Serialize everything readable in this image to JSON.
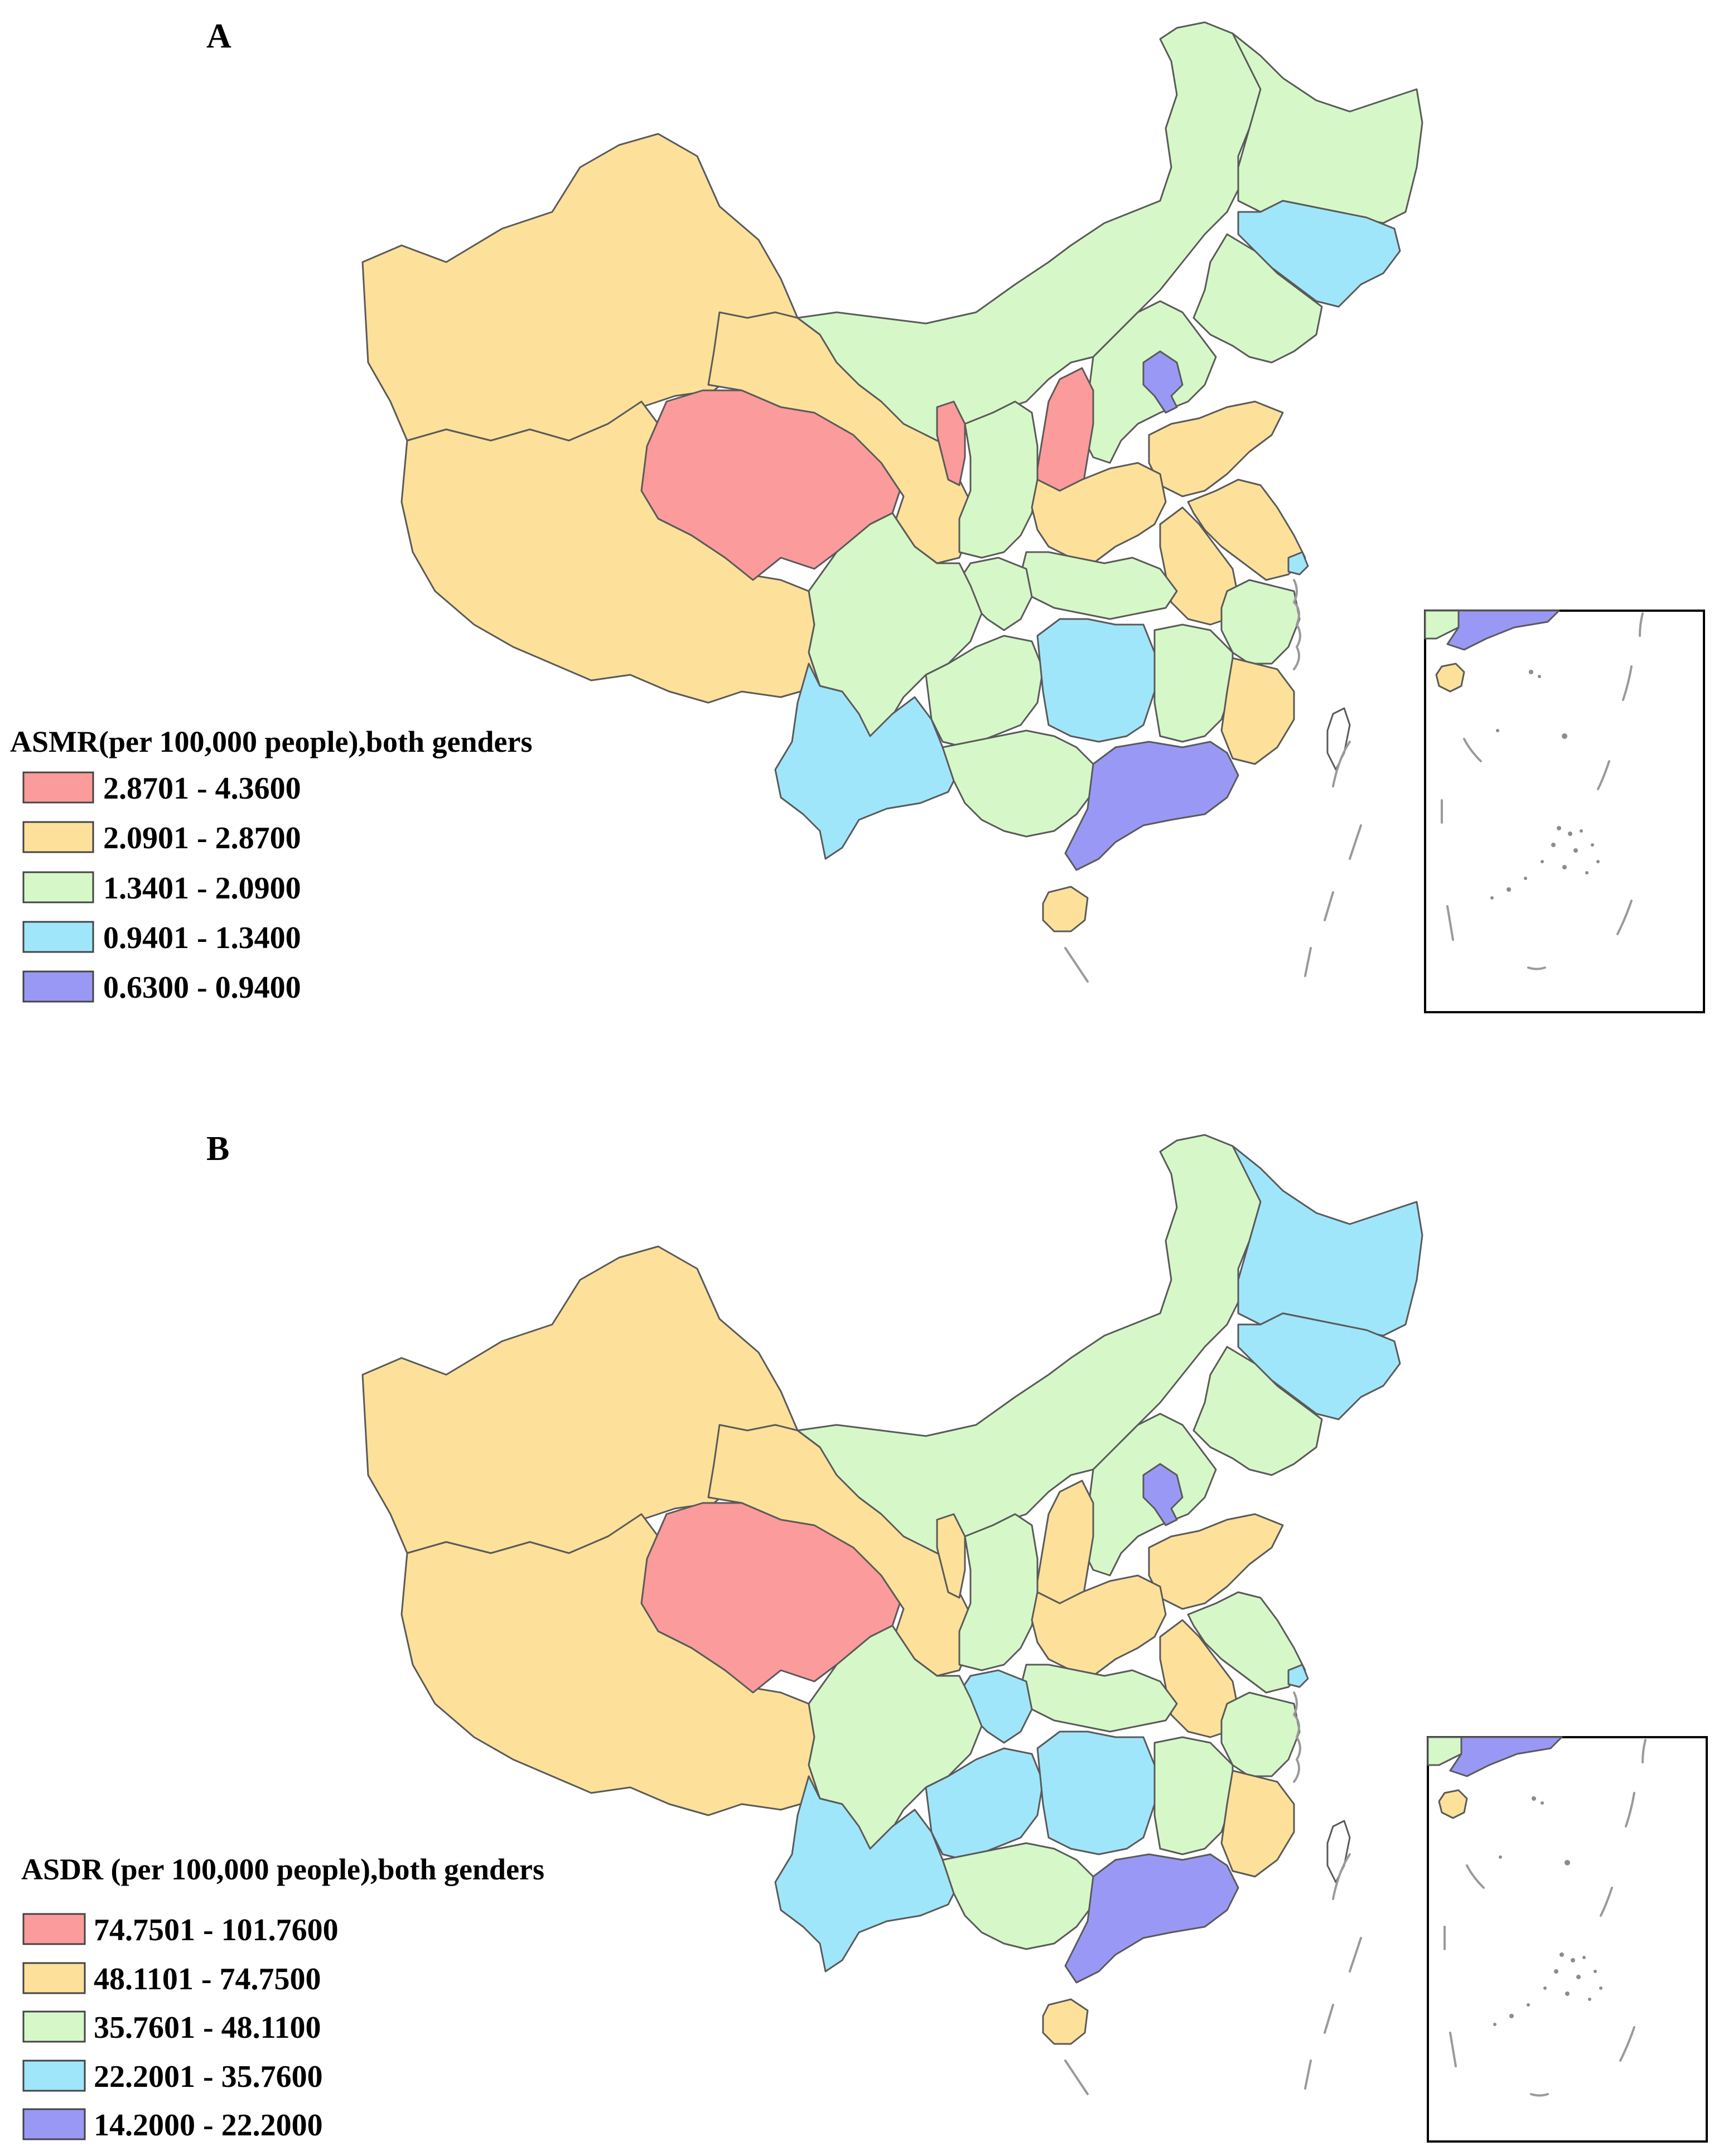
{
  "panels": [
    {
      "label": "A",
      "legend_title": "ASMR(per 100,000 people),both genders",
      "classes": [
        {
          "range": "2.8701 - 4.3600",
          "color": "#fb9b9b"
        },
        {
          "range": "2.0901 - 2.8700",
          "color": "#fde19a"
        },
        {
          "range": "1.3401 - 2.0900",
          "color": "#d6f8c8"
        },
        {
          "range": "0.9401 - 1.3400",
          "color": "#a0e6fb"
        },
        {
          "range": "0.6300 - 0.9400",
          "color": "#9999f5"
        }
      ]
    },
    {
      "label": "B",
      "legend_title": "ASDR (per 100,000 people),both genders",
      "classes": [
        {
          "range": "74.7501 - 101.7600",
          "color": "#fb9b9b"
        },
        {
          "range": "48.1101 - 74.7500",
          "color": "#fde19a"
        },
        {
          "range": "35.7601 - 48.1100",
          "color": "#d6f8c8"
        },
        {
          "range": "22.2001 - 35.7600",
          "color": "#a0e6fb"
        },
        {
          "range": "14.2000 - 22.2000",
          "color": "#9999f5"
        }
      ]
    }
  ]
}
